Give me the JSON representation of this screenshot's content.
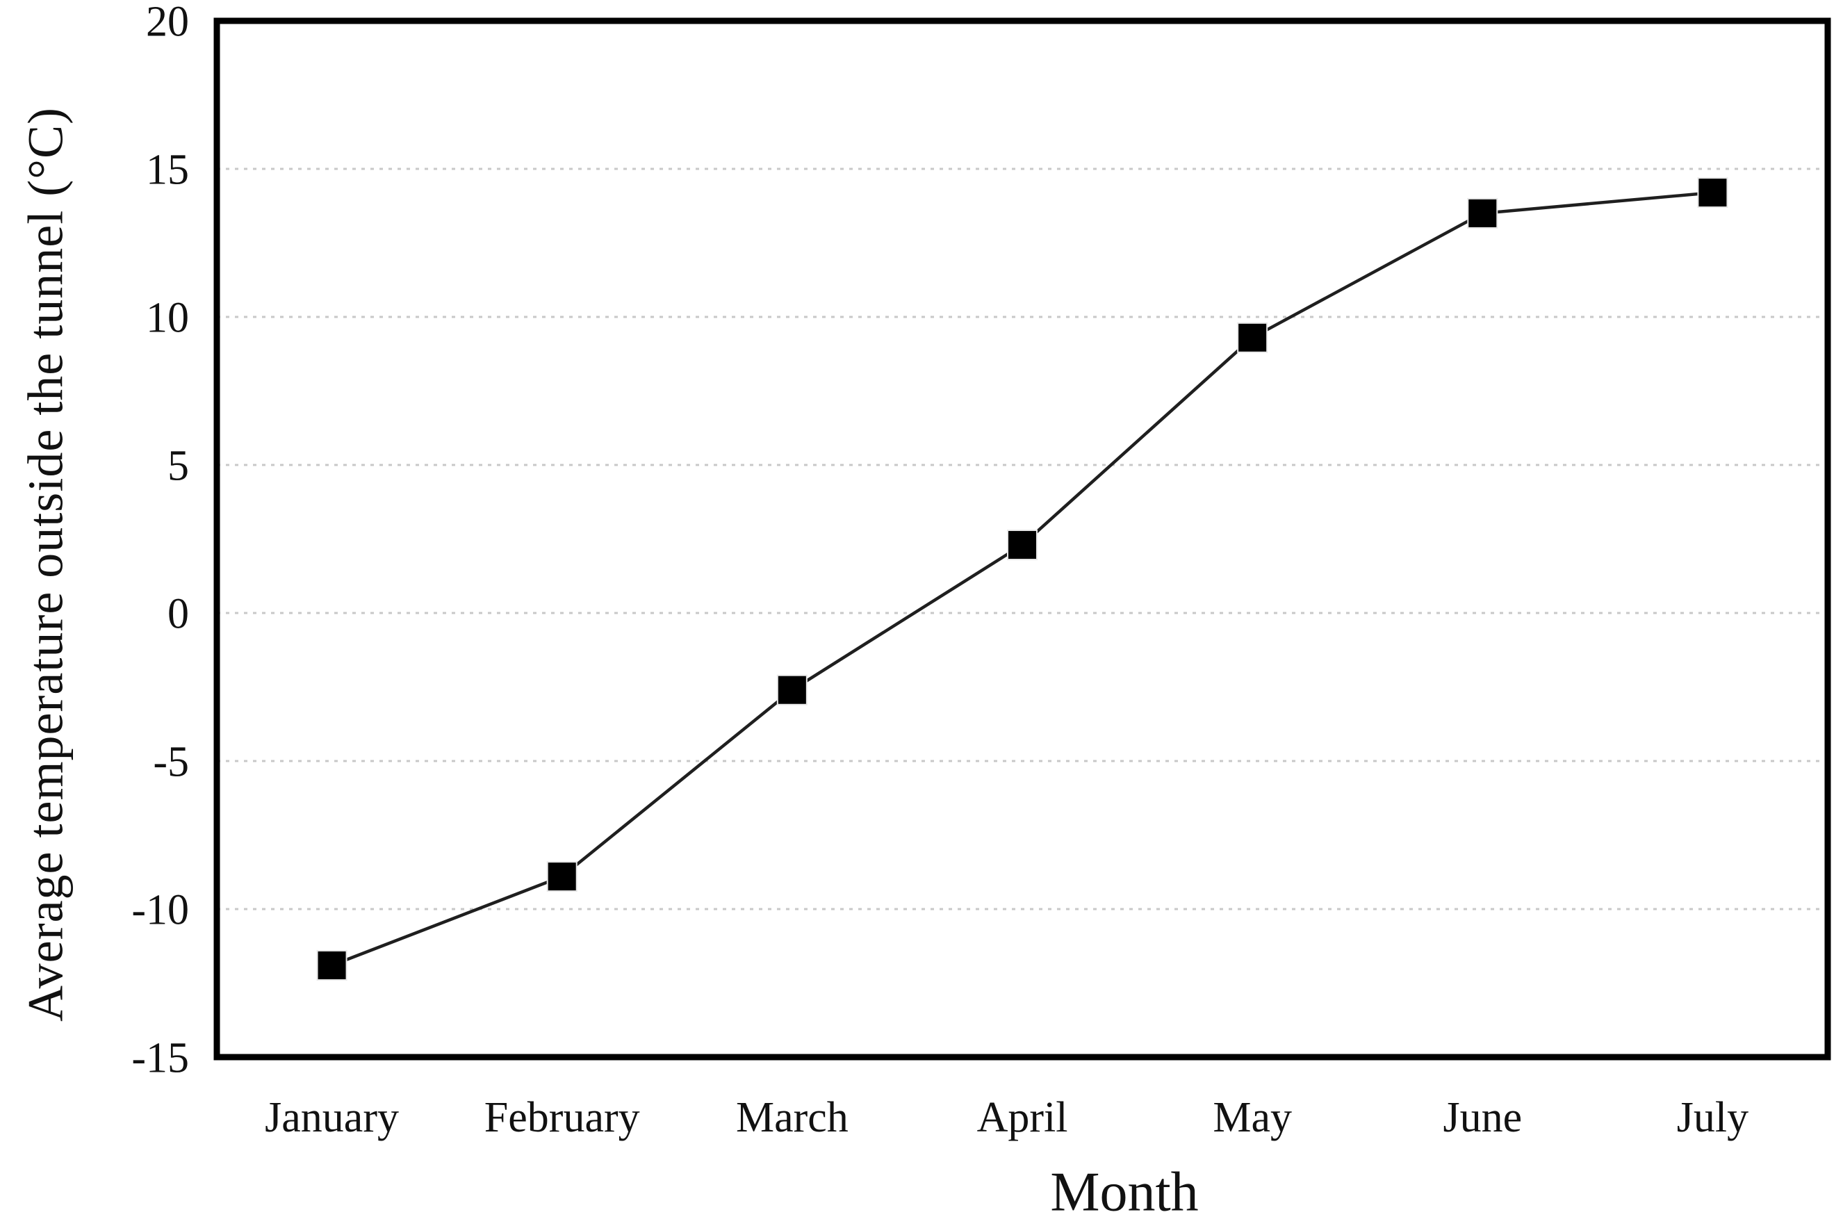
{
  "chart_data": {
    "type": "line",
    "title": "",
    "xlabel": "Month",
    "ylabel": "Average temperature outside the tunnel (°C)",
    "categories": [
      "January",
      "February",
      "March",
      "April",
      "May",
      "June",
      "July"
    ],
    "series": [
      {
        "name": "Average temperature outside the tunnel",
        "values": [
          -11.9,
          -8.9,
          -2.6,
          2.3,
          9.3,
          13.5,
          14.2
        ]
      }
    ],
    "ylim": [
      -15,
      20
    ],
    "yticks": [
      20,
      15,
      10,
      5,
      0,
      -5,
      -10,
      -15
    ],
    "ytick_labels": [
      "20",
      "15",
      "10",
      "5",
      "0",
      "-5",
      "-10",
      "-15"
    ],
    "grid": "horizontal-dotted",
    "gridline_values": [
      15,
      10,
      5,
      0,
      -5,
      -10
    ],
    "legend_position": "none",
    "marker_shape": "filled-square",
    "colors": {
      "line": "#1f1f1f",
      "marker": "#000000",
      "gridline": "#c8c8c8",
      "plot_border": "#000000",
      "background": "#ffffff",
      "text": "#111111"
    }
  }
}
